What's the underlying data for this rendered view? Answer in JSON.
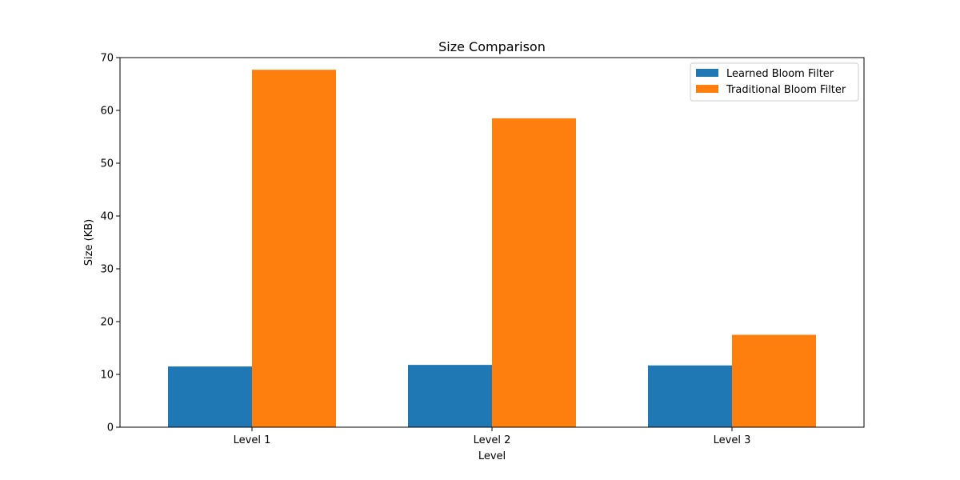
{
  "chart_data": {
    "type": "bar",
    "title": "Size Comparison",
    "xlabel": "Level",
    "ylabel": "Size (KB)",
    "categories": [
      "Level 1",
      "Level 2",
      "Level 3"
    ],
    "series": [
      {
        "name": "Learned Bloom Filter",
        "color": "#1f77b4",
        "values": [
          11.5,
          11.8,
          11.7
        ]
      },
      {
        "name": "Traditional Bloom Filter",
        "color": "#ff7f0e",
        "values": [
          67.7,
          58.5,
          17.5
        ]
      }
    ],
    "ylim": [
      0,
      70
    ],
    "yticks": [
      0,
      10,
      20,
      30,
      40,
      50,
      60,
      70
    ],
    "grid": false,
    "legend_position": "top-right"
  }
}
